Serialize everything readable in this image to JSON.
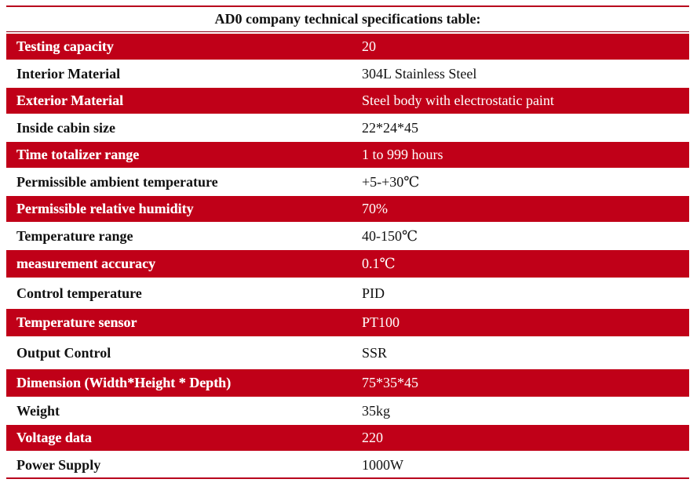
{
  "table": {
    "title": "AD0 company technical specifications table:",
    "rows": [
      {
        "label": "Testing capacity",
        "value": "20"
      },
      {
        "label": "Interior Material",
        "value": "304L Stainless Steel"
      },
      {
        "label": "Exterior Material",
        "value": "Steel body with electrostatic paint"
      },
      {
        "label": "Inside cabin size",
        "value": "22*24*45"
      },
      {
        "label": "Time totalizer range",
        "value": "1 to 999 hours"
      },
      {
        "label": "Permissible ambient temperature",
        "value": "+5-+30℃"
      },
      {
        "label": "Permissible relative humidity",
        "value": "70%"
      },
      {
        "label": "Temperature range",
        "value": "40-150℃"
      },
      {
        "label": "measurement accuracy",
        "value": "0.1℃"
      },
      {
        "label": "Control temperature",
        "value": "PID"
      },
      {
        "label": "Temperature sensor",
        "value": "PT100"
      },
      {
        "label": "Output Control",
        "value": "SSR"
      },
      {
        "label": "Dimension (Width*Height * Depth)",
        "value": "75*35*45"
      },
      {
        "label": "Weight",
        "value": "35kg"
      },
      {
        "label": "Voltage data",
        "value": "220"
      },
      {
        "label": "Power Supply",
        "value": "1000W"
      }
    ]
  },
  "colors": {
    "accent": "#c00018",
    "text": "#111111",
    "background": "#ffffff"
  }
}
